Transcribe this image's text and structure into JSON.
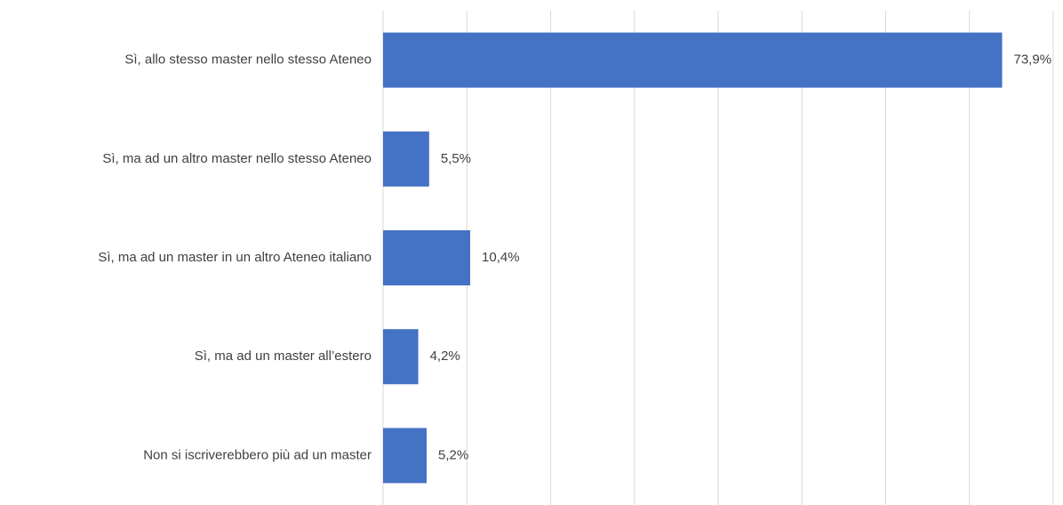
{
  "chart_data": {
    "type": "bar",
    "orientation": "horizontal",
    "categories": [
      "Sì, allo stesso master nello stesso Ateneo",
      "Sì, ma ad un altro master nello stesso Ateneo",
      "Sì, ma ad un master in un altro Ateneo italiano",
      "Sì, ma ad un master all’estero",
      "Non si iscriverebbero più ad un master"
    ],
    "values": [
      73.9,
      5.5,
      10.4,
      4.2,
      5.2
    ],
    "value_labels": [
      "73,9%",
      "5,5%",
      "10,4%",
      "4,2%",
      "5,2%"
    ],
    "color": "#4472c4",
    "xlim": [
      0,
      80
    ],
    "xticks": [
      0,
      10,
      20,
      30,
      40,
      50,
      60,
      70,
      80
    ],
    "grid": true
  }
}
